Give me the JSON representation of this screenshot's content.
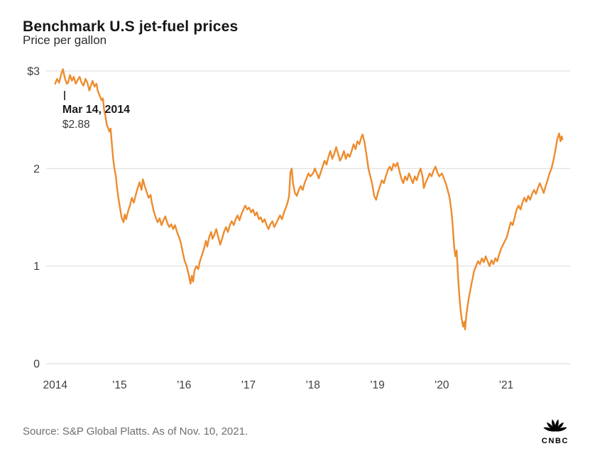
{
  "title": "Benchmark U.S jet-fuel prices",
  "subtitle": "Price per gallon",
  "annotation": {
    "label": "Mar 14, 2014",
    "value": "$2.88",
    "point": [
      2014.2,
      2.88
    ]
  },
  "source_note": "Source: S&P Global Platts. As of Nov. 10, 2021.",
  "logo_text": "CNBC",
  "colors": {
    "line": "#ED8C2E",
    "grid": "#d9d9d9",
    "axis_text": "#3f3f3f",
    "title": "#161616",
    "source": "#6e6e6e",
    "logo": "#000000"
  },
  "chart_data": {
    "type": "line",
    "title": "Benchmark U.S jet-fuel prices",
    "xlabel": "",
    "ylabel": "Price per gallon ($)",
    "legend": "none",
    "grid": "horizontal",
    "xlim": [
      2013.86,
      2021.99
    ],
    "ylim": [
      0,
      3
    ],
    "yticks": [
      {
        "value": 0,
        "label": "0"
      },
      {
        "value": 1,
        "label": "1"
      },
      {
        "value": 2,
        "label": "2"
      },
      {
        "value": 3,
        "label": "$3"
      }
    ],
    "xticks": [
      {
        "value": 2014,
        "label": "2014"
      },
      {
        "value": 2015,
        "label": "'15"
      },
      {
        "value": 2016,
        "label": "'16"
      },
      {
        "value": 2017,
        "label": "'17"
      },
      {
        "value": 2018,
        "label": "'18"
      },
      {
        "value": 2019,
        "label": "'19"
      },
      {
        "value": 2020,
        "label": "'20"
      },
      {
        "value": 2021,
        "label": "'21"
      }
    ],
    "series": [
      {
        "name": "Jet fuel price per gallon (USD)",
        "points": [
          [
            2014.0,
            2.87
          ],
          [
            2014.03,
            2.92
          ],
          [
            2014.06,
            2.88
          ],
          [
            2014.09,
            2.96
          ],
          [
            2014.12,
            3.02
          ],
          [
            2014.15,
            2.93
          ],
          [
            2014.18,
            2.87
          ],
          [
            2014.2,
            2.88
          ],
          [
            2014.23,
            2.96
          ],
          [
            2014.26,
            2.9
          ],
          [
            2014.29,
            2.94
          ],
          [
            2014.32,
            2.87
          ],
          [
            2014.35,
            2.91
          ],
          [
            2014.38,
            2.94
          ],
          [
            2014.41,
            2.88
          ],
          [
            2014.44,
            2.85
          ],
          [
            2014.47,
            2.92
          ],
          [
            2014.5,
            2.88
          ],
          [
            2014.53,
            2.8
          ],
          [
            2014.56,
            2.86
          ],
          [
            2014.58,
            2.9
          ],
          [
            2014.61,
            2.84
          ],
          [
            2014.64,
            2.87
          ],
          [
            2014.66,
            2.8
          ],
          [
            2014.69,
            2.75
          ],
          [
            2014.72,
            2.7
          ],
          [
            2014.74,
            2.72
          ],
          [
            2014.76,
            2.6
          ],
          [
            2014.78,
            2.54
          ],
          [
            2014.8,
            2.45
          ],
          [
            2014.82,
            2.42
          ],
          [
            2014.84,
            2.38
          ],
          [
            2014.86,
            2.41
          ],
          [
            2014.88,
            2.25
          ],
          [
            2014.9,
            2.1
          ],
          [
            2014.92,
            2.0
          ],
          [
            2014.94,
            1.93
          ],
          [
            2014.96,
            1.8
          ],
          [
            2014.98,
            1.7
          ],
          [
            2015.0,
            1.62
          ],
          [
            2015.03,
            1.5
          ],
          [
            2015.06,
            1.45
          ],
          [
            2015.08,
            1.53
          ],
          [
            2015.1,
            1.48
          ],
          [
            2015.13,
            1.56
          ],
          [
            2015.16,
            1.62
          ],
          [
            2015.19,
            1.7
          ],
          [
            2015.22,
            1.65
          ],
          [
            2015.25,
            1.73
          ],
          [
            2015.28,
            1.8
          ],
          [
            2015.31,
            1.86
          ],
          [
            2015.34,
            1.78
          ],
          [
            2015.36,
            1.89
          ],
          [
            2015.39,
            1.82
          ],
          [
            2015.42,
            1.76
          ],
          [
            2015.45,
            1.7
          ],
          [
            2015.48,
            1.73
          ],
          [
            2015.5,
            1.65
          ],
          [
            2015.53,
            1.56
          ],
          [
            2015.56,
            1.5
          ],
          [
            2015.59,
            1.45
          ],
          [
            2015.62,
            1.49
          ],
          [
            2015.65,
            1.42
          ],
          [
            2015.68,
            1.47
          ],
          [
            2015.71,
            1.51
          ],
          [
            2015.74,
            1.44
          ],
          [
            2015.77,
            1.4
          ],
          [
            2015.8,
            1.43
          ],
          [
            2015.83,
            1.38
          ],
          [
            2015.86,
            1.42
          ],
          [
            2015.89,
            1.35
          ],
          [
            2015.92,
            1.3
          ],
          [
            2015.95,
            1.24
          ],
          [
            2015.98,
            1.14
          ],
          [
            2016.01,
            1.05
          ],
          [
            2016.04,
            1.0
          ],
          [
            2016.07,
            0.92
          ],
          [
            2016.1,
            0.82
          ],
          [
            2016.12,
            0.9
          ],
          [
            2016.14,
            0.84
          ],
          [
            2016.16,
            0.95
          ],
          [
            2016.19,
            1.0
          ],
          [
            2016.22,
            0.97
          ],
          [
            2016.25,
            1.06
          ],
          [
            2016.28,
            1.12
          ],
          [
            2016.31,
            1.18
          ],
          [
            2016.34,
            1.26
          ],
          [
            2016.36,
            1.2
          ],
          [
            2016.39,
            1.3
          ],
          [
            2016.42,
            1.35
          ],
          [
            2016.44,
            1.28
          ],
          [
            2016.47,
            1.32
          ],
          [
            2016.5,
            1.38
          ],
          [
            2016.53,
            1.3
          ],
          [
            2016.56,
            1.22
          ],
          [
            2016.59,
            1.28
          ],
          [
            2016.62,
            1.35
          ],
          [
            2016.65,
            1.4
          ],
          [
            2016.68,
            1.35
          ],
          [
            2016.71,
            1.42
          ],
          [
            2016.74,
            1.46
          ],
          [
            2016.77,
            1.42
          ],
          [
            2016.8,
            1.48
          ],
          [
            2016.83,
            1.52
          ],
          [
            2016.86,
            1.47
          ],
          [
            2016.89,
            1.53
          ],
          [
            2016.92,
            1.58
          ],
          [
            2016.95,
            1.62
          ],
          [
            2016.98,
            1.58
          ],
          [
            2017.01,
            1.6
          ],
          [
            2017.04,
            1.55
          ],
          [
            2017.07,
            1.58
          ],
          [
            2017.1,
            1.52
          ],
          [
            2017.13,
            1.55
          ],
          [
            2017.16,
            1.48
          ],
          [
            2017.19,
            1.5
          ],
          [
            2017.22,
            1.45
          ],
          [
            2017.25,
            1.48
          ],
          [
            2017.28,
            1.42
          ],
          [
            2017.31,
            1.38
          ],
          [
            2017.34,
            1.43
          ],
          [
            2017.37,
            1.46
          ],
          [
            2017.4,
            1.4
          ],
          [
            2017.43,
            1.44
          ],
          [
            2017.46,
            1.48
          ],
          [
            2017.49,
            1.52
          ],
          [
            2017.52,
            1.48
          ],
          [
            2017.55,
            1.55
          ],
          [
            2017.58,
            1.6
          ],
          [
            2017.61,
            1.66
          ],
          [
            2017.63,
            1.72
          ],
          [
            2017.65,
            1.96
          ],
          [
            2017.67,
            2.0
          ],
          [
            2017.69,
            1.85
          ],
          [
            2017.72,
            1.75
          ],
          [
            2017.75,
            1.72
          ],
          [
            2017.78,
            1.78
          ],
          [
            2017.81,
            1.82
          ],
          [
            2017.84,
            1.78
          ],
          [
            2017.87,
            1.85
          ],
          [
            2017.9,
            1.9
          ],
          [
            2017.93,
            1.95
          ],
          [
            2017.96,
            1.92
          ],
          [
            2018.0,
            1.95
          ],
          [
            2018.03,
            2.0
          ],
          [
            2018.06,
            1.95
          ],
          [
            2018.09,
            1.9
          ],
          [
            2018.12,
            1.96
          ],
          [
            2018.15,
            2.02
          ],
          [
            2018.18,
            2.08
          ],
          [
            2018.21,
            2.04
          ],
          [
            2018.24,
            2.12
          ],
          [
            2018.27,
            2.18
          ],
          [
            2018.3,
            2.1
          ],
          [
            2018.33,
            2.15
          ],
          [
            2018.36,
            2.22
          ],
          [
            2018.39,
            2.15
          ],
          [
            2018.42,
            2.08
          ],
          [
            2018.45,
            2.12
          ],
          [
            2018.48,
            2.18
          ],
          [
            2018.51,
            2.1
          ],
          [
            2018.54,
            2.15
          ],
          [
            2018.57,
            2.12
          ],
          [
            2018.6,
            2.18
          ],
          [
            2018.63,
            2.25
          ],
          [
            2018.66,
            2.2
          ],
          [
            2018.69,
            2.28
          ],
          [
            2018.72,
            2.25
          ],
          [
            2018.75,
            2.32
          ],
          [
            2018.77,
            2.35
          ],
          [
            2018.8,
            2.27
          ],
          [
            2018.83,
            2.14
          ],
          [
            2018.86,
            2.0
          ],
          [
            2018.89,
            1.92
          ],
          [
            2018.92,
            1.84
          ],
          [
            2018.95,
            1.72
          ],
          [
            2018.98,
            1.68
          ],
          [
            2019.01,
            1.76
          ],
          [
            2019.04,
            1.82
          ],
          [
            2019.07,
            1.88
          ],
          [
            2019.1,
            1.85
          ],
          [
            2019.13,
            1.92
          ],
          [
            2019.16,
            1.98
          ],
          [
            2019.19,
            2.02
          ],
          [
            2019.22,
            1.98
          ],
          [
            2019.25,
            2.05
          ],
          [
            2019.28,
            2.02
          ],
          [
            2019.31,
            2.06
          ],
          [
            2019.34,
            1.98
          ],
          [
            2019.37,
            1.9
          ],
          [
            2019.4,
            1.85
          ],
          [
            2019.43,
            1.92
          ],
          [
            2019.46,
            1.88
          ],
          [
            2019.49,
            1.95
          ],
          [
            2019.52,
            1.9
          ],
          [
            2019.55,
            1.85
          ],
          [
            2019.58,
            1.92
          ],
          [
            2019.61,
            1.88
          ],
          [
            2019.64,
            1.95
          ],
          [
            2019.67,
            2.0
          ],
          [
            2019.7,
            1.92
          ],
          [
            2019.72,
            1.8
          ],
          [
            2019.75,
            1.86
          ],
          [
            2019.78,
            1.9
          ],
          [
            2019.81,
            1.95
          ],
          [
            2019.84,
            1.92
          ],
          [
            2019.87,
            1.98
          ],
          [
            2019.9,
            2.02
          ],
          [
            2019.93,
            1.96
          ],
          [
            2019.96,
            1.92
          ],
          [
            2020.0,
            1.95
          ],
          [
            2020.03,
            1.9
          ],
          [
            2020.06,
            1.85
          ],
          [
            2020.09,
            1.78
          ],
          [
            2020.12,
            1.7
          ],
          [
            2020.15,
            1.55
          ],
          [
            2020.17,
            1.4
          ],
          [
            2020.19,
            1.2
          ],
          [
            2020.21,
            1.1
          ],
          [
            2020.23,
            1.16
          ],
          [
            2020.25,
            0.9
          ],
          [
            2020.27,
            0.7
          ],
          [
            2020.29,
            0.55
          ],
          [
            2020.31,
            0.45
          ],
          [
            2020.33,
            0.38
          ],
          [
            2020.35,
            0.43
          ],
          [
            2020.36,
            0.35
          ],
          [
            2020.38,
            0.5
          ],
          [
            2020.4,
            0.6
          ],
          [
            2020.42,
            0.68
          ],
          [
            2020.44,
            0.75
          ],
          [
            2020.46,
            0.82
          ],
          [
            2020.48,
            0.88
          ],
          [
            2020.5,
            0.95
          ],
          [
            2020.53,
            1.0
          ],
          [
            2020.56,
            1.05
          ],
          [
            2020.59,
            1.02
          ],
          [
            2020.62,
            1.08
          ],
          [
            2020.65,
            1.04
          ],
          [
            2020.68,
            1.1
          ],
          [
            2020.71,
            1.05
          ],
          [
            2020.74,
            1.0
          ],
          [
            2020.77,
            1.06
          ],
          [
            2020.8,
            1.02
          ],
          [
            2020.83,
            1.08
          ],
          [
            2020.86,
            1.05
          ],
          [
            2020.89,
            1.12
          ],
          [
            2020.92,
            1.18
          ],
          [
            2020.95,
            1.22
          ],
          [
            2020.98,
            1.26
          ],
          [
            2021.01,
            1.3
          ],
          [
            2021.04,
            1.38
          ],
          [
            2021.07,
            1.45
          ],
          [
            2021.1,
            1.42
          ],
          [
            2021.13,
            1.5
          ],
          [
            2021.16,
            1.58
          ],
          [
            2021.19,
            1.62
          ],
          [
            2021.22,
            1.58
          ],
          [
            2021.25,
            1.65
          ],
          [
            2021.28,
            1.7
          ],
          [
            2021.31,
            1.66
          ],
          [
            2021.34,
            1.72
          ],
          [
            2021.37,
            1.68
          ],
          [
            2021.4,
            1.74
          ],
          [
            2021.43,
            1.78
          ],
          [
            2021.46,
            1.74
          ],
          [
            2021.49,
            1.8
          ],
          [
            2021.52,
            1.85
          ],
          [
            2021.55,
            1.8
          ],
          [
            2021.58,
            1.75
          ],
          [
            2021.61,
            1.82
          ],
          [
            2021.64,
            1.88
          ],
          [
            2021.67,
            1.95
          ],
          [
            2021.7,
            2.0
          ],
          [
            2021.73,
            2.08
          ],
          [
            2021.76,
            2.18
          ],
          [
            2021.79,
            2.3
          ],
          [
            2021.82,
            2.36
          ],
          [
            2021.84,
            2.28
          ],
          [
            2021.86,
            2.33
          ],
          [
            2021.87,
            2.3
          ]
        ]
      }
    ]
  }
}
